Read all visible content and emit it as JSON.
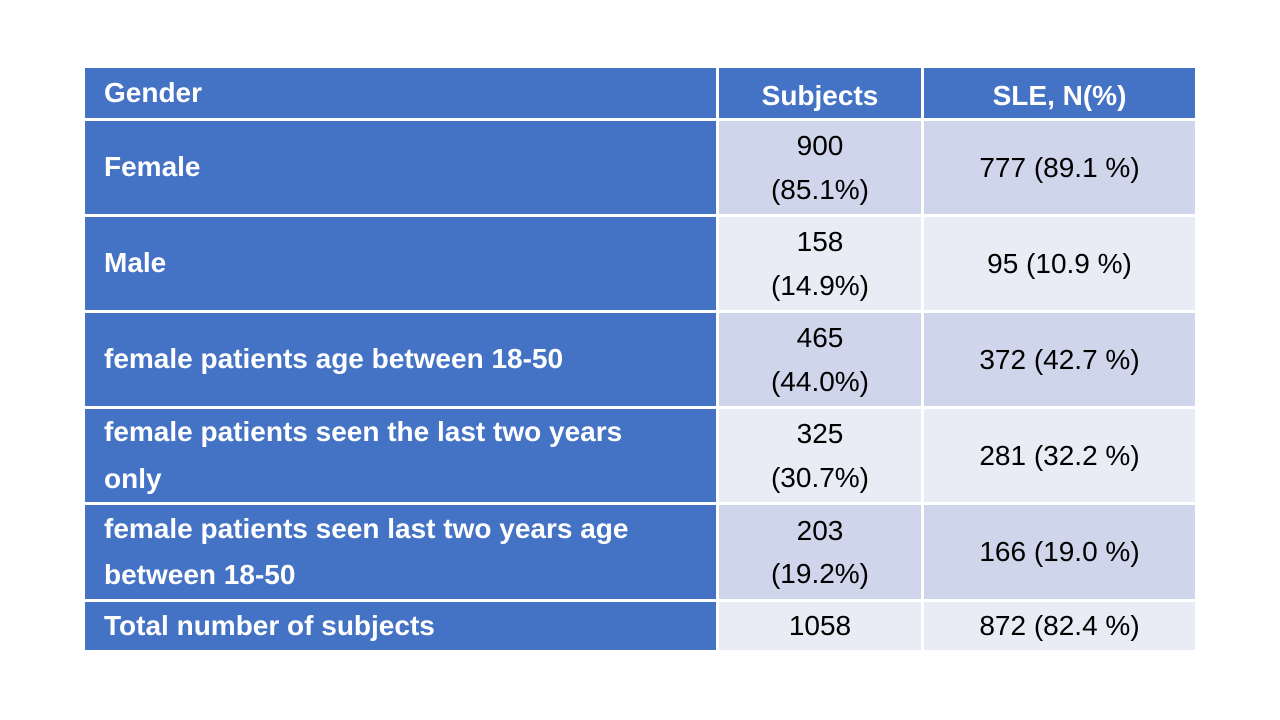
{
  "colors": {
    "header_blue": "#4472C4",
    "band_dark": "#CFD5EA",
    "band_light": "#E9EBF5",
    "header_text": "#FFFFFF",
    "cell_text": "#000000",
    "page_bg": "#FFFFFF"
  },
  "table": {
    "headers": [
      "Gender",
      "Subjects",
      "SLE, N(%)"
    ],
    "rows": [
      {
        "label": "Female",
        "subjects": [
          "900",
          "(85.1%)"
        ],
        "sle": "777 (89.1 %)"
      },
      {
        "label": "Male",
        "subjects": [
          "158",
          "(14.9%)"
        ],
        "sle": "95 (10.9 %)"
      },
      {
        "label": "female patients age between 18-50",
        "subjects": [
          "465",
          "(44.0%)"
        ],
        "sle": "372 (42.7 %)"
      },
      {
        "label": "female patients seen the last two years only",
        "subjects": [
          "325",
          "(30.7%)"
        ],
        "sle": "281 (32.2 %)"
      },
      {
        "label": "female patients seen last two years age between 18-50",
        "subjects": [
          "203",
          "(19.2%)"
        ],
        "sle": "166 (19.0 %)"
      },
      {
        "label": "Total number of subjects",
        "subjects": [
          "1058"
        ],
        "sle": "872 (82.4 %)"
      }
    ]
  },
  "chart_data": {
    "type": "table",
    "columns": [
      "Gender",
      "Subjects",
      "SLE, N(%)"
    ],
    "rows": [
      [
        "Female",
        "900 (85.1%)",
        "777 (89.1 %)"
      ],
      [
        "Male",
        "158 (14.9%)",
        "95 (10.9 %)"
      ],
      [
        "female patients age between 18-50",
        "465 (44.0%)",
        "372 (42.7 %)"
      ],
      [
        "female patients seen the last two years only",
        "325 (30.7%)",
        "281 (32.2 %)"
      ],
      [
        "female patients seen last two years age between 18-50",
        "203 (19.2%)",
        "166 (19.0 %)"
      ],
      [
        "Total number of subjects",
        "1058",
        "872 (82.4 %)"
      ]
    ]
  }
}
